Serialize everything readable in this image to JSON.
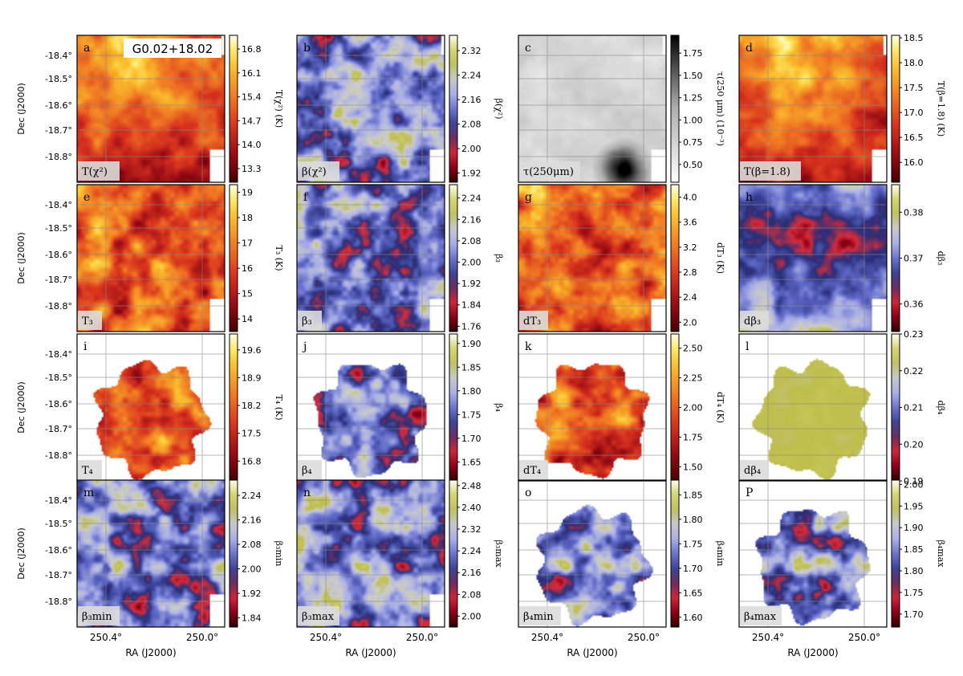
{
  "figure": {
    "source_label": "G0.02+18.02",
    "dec_axis_label": "Dec (J2000)",
    "ra_axis_label": "RA (J2000)",
    "dec_ticks": [
      "-18.4°",
      "-18.5°",
      "-18.6°",
      "-18.7°",
      "-18.8°"
    ],
    "ra_ticks": [
      "250.4°",
      "250.0°"
    ]
  },
  "chart_data": [
    {
      "type": "heatmap",
      "panel": "a",
      "map_label": "T(χ²)",
      "colorbar_label": "T(χ²) (K)",
      "colormap": "hot",
      "contours": true,
      "colorbar_ticks": [
        16.8,
        16.1,
        15.4,
        14.7,
        14.0,
        13.3
      ],
      "colorbar_tick_labels": [
        "16.8",
        "16.1",
        "15.4",
        "14.7",
        "14.0",
        "13.3"
      ],
      "vmin": 12.9,
      "vmax": 17.2,
      "extent": "full"
    },
    {
      "type": "heatmap",
      "panel": "b",
      "map_label": "β(χ²)",
      "colorbar_label": "β(χ²)",
      "colormap": "diverging",
      "contours": true,
      "colorbar_ticks": [
        2.32,
        2.24,
        2.16,
        2.08,
        2.0,
        1.92
      ],
      "colorbar_tick_labels": [
        "2.32",
        "2.24",
        "2.16",
        "2.08",
        "2.00",
        "1.92"
      ],
      "vmin": 1.89,
      "vmax": 2.37,
      "extent": "full"
    },
    {
      "type": "heatmap",
      "panel": "c",
      "map_label": "τ(250μm)",
      "colorbar_label": "τ(250 μm) (10⁻³)",
      "colormap": "greys",
      "contours": false,
      "colorbar_ticks": [
        1.75,
        1.5,
        1.25,
        1.0,
        0.75,
        0.5
      ],
      "colorbar_tick_labels": [
        "1.75",
        "1.50",
        "1.25",
        "1.00",
        "0.75",
        "0.50"
      ],
      "vmin": 0.3,
      "vmax": 1.95,
      "extent": "full"
    },
    {
      "type": "heatmap",
      "panel": "d",
      "map_label": "T(β=1.8)",
      "colorbar_label": "T(β=1.8) (K)",
      "colormap": "hot",
      "contours": true,
      "colorbar_ticks": [
        18.5,
        18.0,
        17.5,
        17.0,
        16.5,
        16.0
      ],
      "colorbar_tick_labels": [
        "18.5",
        "18.0",
        "17.5",
        "17.0",
        "16.5",
        "16.0"
      ],
      "vmin": 15.6,
      "vmax": 18.55,
      "extent": "full"
    },
    {
      "type": "heatmap",
      "panel": "e",
      "map_label": "T₃",
      "colorbar_label": "T₃ (K)",
      "colormap": "hot",
      "contours": true,
      "colorbar_ticks": [
        19,
        18,
        17,
        16,
        15,
        14
      ],
      "colorbar_tick_labels": [
        "19",
        "18",
        "17",
        "16",
        "15",
        "14"
      ],
      "vmin": 13.5,
      "vmax": 19.3,
      "extent": "full"
    },
    {
      "type": "heatmap",
      "panel": "f",
      "map_label": "β₃",
      "colorbar_label": "β₃",
      "colormap": "diverging",
      "contours": true,
      "colorbar_ticks": [
        2.24,
        2.16,
        2.08,
        2.0,
        1.92,
        1.84,
        1.76
      ],
      "colorbar_tick_labels": [
        "2.24",
        "2.16",
        "2.08",
        "2.00",
        "1.92",
        "1.84",
        "1.76"
      ],
      "vmin": 1.74,
      "vmax": 2.29,
      "extent": "full"
    },
    {
      "type": "heatmap",
      "panel": "g",
      "map_label": "dT₃",
      "colorbar_label": "dT₃ (K)",
      "colormap": "hot",
      "contours": false,
      "colorbar_ticks": [
        4.0,
        3.6,
        3.2,
        2.8,
        2.4,
        2.0
      ],
      "colorbar_tick_labels": [
        "4.0",
        "3.6",
        "3.2",
        "2.8",
        "2.4",
        "2.0"
      ],
      "vmin": 1.85,
      "vmax": 4.2,
      "extent": "full"
    },
    {
      "type": "heatmap",
      "panel": "h",
      "map_label": "dβ₃",
      "colorbar_label": "dβ₃",
      "colormap": "diverging",
      "contours": false,
      "colorbar_ticks": [
        0.38,
        0.37,
        0.36
      ],
      "colorbar_tick_labels": [
        "0.38",
        "0.37",
        "0.36"
      ],
      "vmin": 0.354,
      "vmax": 0.386,
      "extent": "full"
    },
    {
      "type": "heatmap",
      "panel": "i",
      "map_label": "T₄",
      "colorbar_label": "T₄ (K)",
      "colormap": "hot",
      "contours": true,
      "colorbar_ticks": [
        19.6,
        18.9,
        18.2,
        17.5,
        16.8
      ],
      "colorbar_tick_labels": [
        "19.6",
        "18.9",
        "18.2",
        "17.5",
        "16.8"
      ],
      "vmin": 16.3,
      "vmax": 20.0,
      "extent": "patch"
    },
    {
      "type": "heatmap",
      "panel": "j",
      "map_label": "β₄",
      "colorbar_label": "β₄",
      "colormap": "diverging",
      "contours": true,
      "colorbar_ticks": [
        1.9,
        1.85,
        1.8,
        1.75,
        1.7,
        1.65
      ],
      "colorbar_tick_labels": [
        "1.90",
        "1.85",
        "1.80",
        "1.75",
        "1.70",
        "1.65"
      ],
      "vmin": 1.61,
      "vmax": 1.92,
      "extent": "patch"
    },
    {
      "type": "heatmap",
      "panel": "k",
      "map_label": "dT₄",
      "colorbar_label": "dT₄ (K)",
      "colormap": "hot",
      "contours": false,
      "colorbar_ticks": [
        2.5,
        2.25,
        2.0,
        1.75,
        1.5
      ],
      "colorbar_tick_labels": [
        "2.50",
        "2.25",
        "2.00",
        "1.75",
        "1.50"
      ],
      "vmin": 1.38,
      "vmax": 2.62,
      "extent": "patch"
    },
    {
      "type": "heatmap",
      "panel": "l",
      "map_label": "dβ₄",
      "colorbar_label": "dβ₄",
      "colormap": "diverging",
      "contours": false,
      "colorbar_ticks": [
        0.23,
        0.22,
        0.21,
        0.2,
        0.19
      ],
      "colorbar_tick_labels": [
        "0.23",
        "0.22",
        "0.21",
        "0.20",
        "0.19"
      ],
      "vmin": 0.19,
      "vmax": 0.23,
      "extent": "patch"
    },
    {
      "type": "heatmap",
      "panel": "m",
      "map_label": "β₃min",
      "colorbar_label": "β₃min",
      "colormap": "diverging",
      "contours": true,
      "colorbar_ticks": [
        2.24,
        2.16,
        2.08,
        2.0,
        1.92,
        1.84
      ],
      "colorbar_tick_labels": [
        "2.24",
        "2.16",
        "2.08",
        "2.00",
        "1.92",
        "1.84"
      ],
      "vmin": 1.81,
      "vmax": 2.29,
      "extent": "full"
    },
    {
      "type": "heatmap",
      "panel": "n",
      "map_label": "β₃max",
      "colorbar_label": "β₃max",
      "colormap": "diverging",
      "contours": true,
      "colorbar_ticks": [
        2.48,
        2.4,
        2.32,
        2.24,
        2.16,
        2.08,
        2.0
      ],
      "colorbar_tick_labels": [
        "2.48",
        "2.40",
        "2.32",
        "2.24",
        "2.16",
        "2.08",
        "2.00"
      ],
      "vmin": 1.96,
      "vmax": 2.5,
      "extent": "full"
    },
    {
      "type": "heatmap",
      "panel": "o",
      "map_label": "β₄min",
      "colorbar_label": "β₄min",
      "colormap": "diverging",
      "contours": true,
      "colorbar_ticks": [
        1.85,
        1.8,
        1.75,
        1.7,
        1.65,
        1.6
      ],
      "colorbar_tick_labels": [
        "1.85",
        "1.80",
        "1.75",
        "1.70",
        "1.65",
        "1.60"
      ],
      "vmin": 1.58,
      "vmax": 1.88,
      "extent": "patch"
    },
    {
      "type": "heatmap",
      "panel": "P",
      "map_label": "β₄max",
      "colorbar_label": "β₄max",
      "colormap": "diverging",
      "contours": true,
      "colorbar_ticks": [
        2.0,
        1.95,
        1.9,
        1.85,
        1.8,
        1.75,
        1.7
      ],
      "colorbar_tick_labels": [
        "2.00",
        "1.95",
        "1.90",
        "1.85",
        "1.80",
        "1.75",
        "1.70"
      ],
      "vmin": 1.67,
      "vmax": 2.01,
      "extent": "patch"
    }
  ]
}
